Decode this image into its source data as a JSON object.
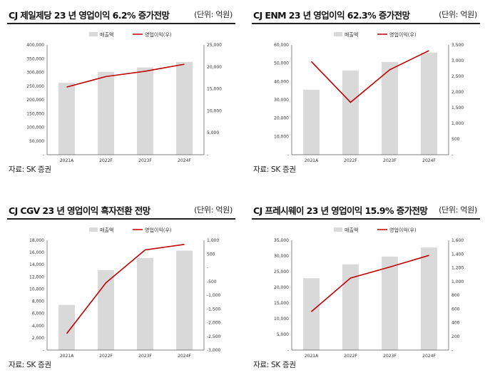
{
  "charts": [
    {
      "title": "CJ 제일제당 23 년 영업이익 6.2% 증가전망",
      "unit": "(단위: 억원)",
      "source": "자료: SK 증권",
      "legend": [
        "매출액",
        "영업이익(우)"
      ],
      "colors": {
        "bar": "#d9d9d9",
        "line": "#c00000"
      },
      "chart_data": {
        "type": "bar",
        "categories": [
          "2021A",
          "2022F",
          "2023F",
          "2024F"
        ],
        "series": [
          {
            "name": "매출액",
            "type": "bar",
            "axis": "left",
            "values": [
              262000,
              302000,
              318000,
              338000
            ]
          },
          {
            "name": "영업이익(우)",
            "type": "line",
            "axis": "right",
            "values": [
              15400,
              17800,
              19000,
              20600
            ]
          }
        ],
        "left_ylim": [
          0,
          400000
        ],
        "left_ticks": [
          "400,000",
          "350,000",
          "300,000",
          "250,000",
          "200,000",
          "150,000",
          "100,000",
          "50,000",
          "-"
        ],
        "right_ylim": [
          0,
          25000
        ],
        "right_ticks": [
          "25,000",
          "20,000",
          "15,000",
          "10,000",
          "5,000",
          "-"
        ]
      }
    },
    {
      "title": "CJ ENM 23 년 영업이익 62.3% 증가전망",
      "unit": "(단위: 억원)",
      "source": "자료: SK 증권",
      "legend": [
        "매출액",
        "영업이익(우)"
      ],
      "colors": {
        "bar": "#d9d9d9",
        "line": "#c00000"
      },
      "chart_data": {
        "type": "bar",
        "categories": [
          "2021A",
          "2022F",
          "2023F",
          "2024F"
        ],
        "series": [
          {
            "name": "매출액",
            "type": "bar",
            "axis": "left",
            "values": [
              35500,
              46000,
              50700,
              55800
            ]
          },
          {
            "name": "영업이익(우)",
            "type": "line",
            "axis": "right",
            "values": [
              2970,
              1670,
              2710,
              3320
            ]
          }
        ],
        "left_ylim": [
          0,
          60000
        ],
        "left_ticks": [
          "60,000",
          "50,000",
          "40,000",
          "30,000",
          "20,000",
          "10,000",
          "-"
        ],
        "right_ylim": [
          0,
          3500
        ],
        "right_ticks": [
          "3,500",
          "3,000",
          "2,500",
          "2,000",
          "1,500",
          "1,000",
          "500",
          "-"
        ]
      }
    },
    {
      "title": "CJ CGV 23 년 영업이익 흑자전환 전망",
      "unit": "(단위: 억원)",
      "source": "자료: SK 증권",
      "legend": [
        "매출액",
        "영업이익(우)"
      ],
      "colors": {
        "bar": "#d9d9d9",
        "line": "#c00000"
      },
      "chart_data": {
        "type": "bar",
        "categories": [
          "2021A",
          "2022F",
          "2023F",
          "2024F"
        ],
        "series": [
          {
            "name": "매출액",
            "type": "bar",
            "axis": "left",
            "values": [
              7400,
              13100,
              15100,
              16300
            ]
          },
          {
            "name": "영업이익(우)",
            "type": "line",
            "axis": "right",
            "values": [
              -2400,
              -550,
              650,
              850
            ]
          }
        ],
        "left_ylim": [
          0,
          18000
        ],
        "left_ticks": [
          "18,000",
          "16,000",
          "14,000",
          "12,000",
          "10,000",
          "8,000",
          "6,000",
          "4,000",
          "2,000",
          "-"
        ],
        "right_ylim": [
          -3000,
          1000
        ],
        "right_ticks": [
          "1,000",
          "500",
          "-",
          "-500",
          "-1,000",
          "-1,500",
          "-2,000",
          "-2,500",
          "-3,000"
        ]
      }
    },
    {
      "title": "CJ 프레시웨이 23 년 영업이익 15.9% 증가전망",
      "unit": "(단위: 억원)",
      "source": "자료: SK 증권",
      "legend": [
        "매출액",
        "영업이익(우)"
      ],
      "colors": {
        "bar": "#d9d9d9",
        "line": "#c00000"
      },
      "chart_data": {
        "type": "bar",
        "categories": [
          "2021A",
          "2022F",
          "2023F",
          "2024F"
        ],
        "series": [
          {
            "name": "매출액",
            "type": "bar",
            "axis": "left",
            "values": [
              22900,
              27300,
              29800,
              32700
            ]
          },
          {
            "name": "영업이익(우)",
            "type": "line",
            "axis": "right",
            "values": [
              560,
              1050,
              1210,
              1380
            ]
          }
        ],
        "left_ylim": [
          0,
          35000
        ],
        "left_ticks": [
          "35,000",
          "30,000",
          "25,000",
          "20,000",
          "15,000",
          "10,000",
          "5,000",
          "-"
        ],
        "right_ylim": [
          0,
          1600
        ],
        "right_ticks": [
          "1,600",
          "1,400",
          "1,200",
          "1,000",
          "800",
          "600",
          "400",
          "200",
          "-"
        ]
      }
    }
  ]
}
